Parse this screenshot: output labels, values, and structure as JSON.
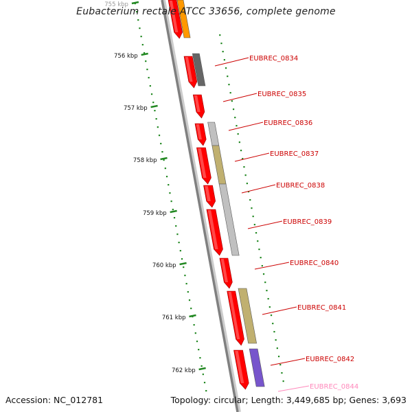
{
  "title": "Eubacterium rectale ATCC 33656, complete genome",
  "footer": {
    "accession": "Accession: NC_012781",
    "topology": "Topology: circular; Length: 3,449,685 bp; Genes: 3,693"
  },
  "ruler": {
    "unit": "kbp",
    "labels": [
      "755 kbp",
      "756 kbp",
      "757 kbp",
      "758 kbp",
      "759 kbp",
      "760 kbp",
      "761 kbp",
      "762 kbp"
    ]
  },
  "genes": [
    {
      "label": "",
      "color": "#ff0000"
    },
    {
      "label": "EUBREC_0834",
      "color": "#ff0000"
    },
    {
      "label": "EUBREC_0835",
      "color": "#ff0000"
    },
    {
      "label": "EUBREC_0836",
      "color": "#ff0000"
    },
    {
      "label": "EUBREC_0837",
      "color": "#ff0000"
    },
    {
      "label": "EUBREC_0838",
      "color": "#ff0000"
    },
    {
      "label": "EUBREC_0839",
      "color": "#ff0000"
    },
    {
      "label": "EUBREC_0840",
      "color": "#ff0000"
    },
    {
      "label": "EUBREC_0841",
      "color": "#ff0000"
    },
    {
      "label": "EUBREC_0842",
      "color": "#ff0000"
    },
    {
      "label": "EUBREC_0844",
      "color": "#ff99cc"
    }
  ],
  "colors": {
    "backbone": "#808080",
    "cds": "#ff0000",
    "label": "#cc0000",
    "label_faded": "#ff88bb",
    "tick": "#228822",
    "orange": "#ff9900",
    "dark_gray": "#666666",
    "light_gray": "#c0c0c0",
    "olive": "#c0b070",
    "purple": "#7755cc"
  }
}
